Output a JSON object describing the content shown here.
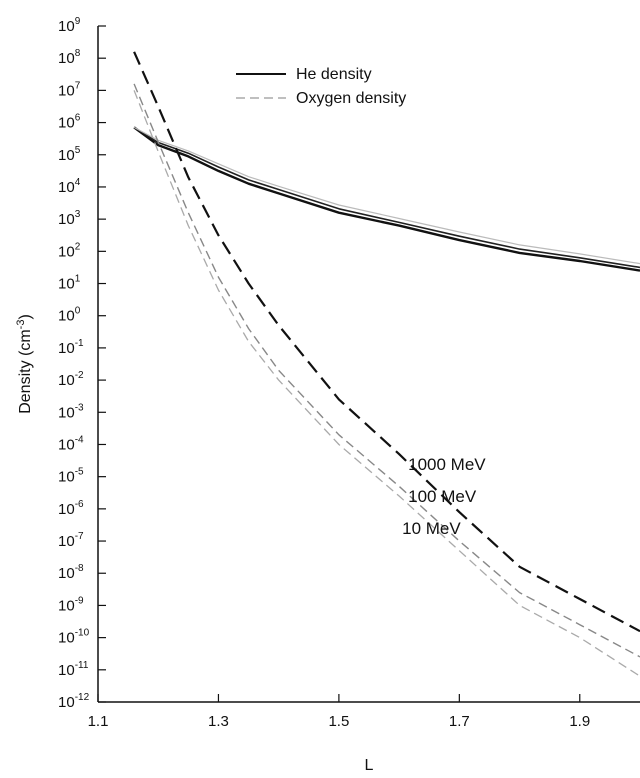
{
  "chart_data": {
    "type": "line",
    "xlabel": "L",
    "ylabel": "Density (cm",
    "ylabel_sup": "-3",
    "ylabel_close": ")",
    "xlim": [
      1.1,
      2.0
    ],
    "ylim_log10": [
      -12,
      9
    ],
    "y_scale": "log",
    "grid": false,
    "legend_position": "top-center",
    "x_ticks": [
      {
        "value": 1.1,
        "label": "1.1"
      },
      {
        "value": 1.3,
        "label": "1.3"
      },
      {
        "value": 1.5,
        "label": "1.5"
      },
      {
        "value": 1.7,
        "label": "1.7"
      },
      {
        "value": 1.9,
        "label": "1.9"
      }
    ],
    "y_ticks": [
      {
        "exp": 9,
        "base": "10",
        "sup": "9"
      },
      {
        "exp": 8,
        "base": "10",
        "sup": "8"
      },
      {
        "exp": 7,
        "base": "10",
        "sup": "7"
      },
      {
        "exp": 6,
        "base": "10",
        "sup": "6"
      },
      {
        "exp": 5,
        "base": "10",
        "sup": "5"
      },
      {
        "exp": 4,
        "base": "10",
        "sup": "4"
      },
      {
        "exp": 3,
        "base": "10",
        "sup": "3"
      },
      {
        "exp": 2,
        "base": "10",
        "sup": "2"
      },
      {
        "exp": 1,
        "base": "10",
        "sup": "1"
      },
      {
        "exp": 0,
        "base": "10",
        "sup": "0"
      },
      {
        "exp": -1,
        "base": "10",
        "sup": "-1"
      },
      {
        "exp": -2,
        "base": "10",
        "sup": "-2"
      },
      {
        "exp": -3,
        "base": "10",
        "sup": "-3"
      },
      {
        "exp": -4,
        "base": "10",
        "sup": "-4"
      },
      {
        "exp": -5,
        "base": "10",
        "sup": "-5"
      },
      {
        "exp": -6,
        "base": "10",
        "sup": "-6"
      },
      {
        "exp": -7,
        "base": "10",
        "sup": "-7"
      },
      {
        "exp": -8,
        "base": "10",
        "sup": "-8"
      },
      {
        "exp": -9,
        "base": "10",
        "sup": "-9"
      },
      {
        "exp": -10,
        "base": "10",
        "sup": "-10"
      },
      {
        "exp": -11,
        "base": "10",
        "sup": "-11"
      },
      {
        "exp": -12,
        "base": "10",
        "sup": "-12"
      }
    ],
    "legend": [
      {
        "label": "He density",
        "style": "solid",
        "color": "#111111"
      },
      {
        "label": "Oxygen density",
        "style": "dashed",
        "color": "#999999"
      }
    ],
    "series": [
      {
        "name": "He density",
        "energy": "1000 MeV",
        "style": "solid",
        "color": "#111111",
        "width": 2.4,
        "x": [
          1.16,
          1.2,
          1.25,
          1.3,
          1.35,
          1.4,
          1.5,
          1.6,
          1.7,
          1.8,
          1.9,
          2.0
        ],
        "log10_y": [
          5.85,
          5.3,
          4.95,
          4.5,
          4.1,
          3.8,
          3.2,
          2.8,
          2.35,
          1.95,
          1.7,
          1.4
        ]
      },
      {
        "name": "He density",
        "energy": "100 MeV",
        "style": "solid",
        "color": "#222222",
        "width": 1.6,
        "x": [
          1.16,
          1.2,
          1.25,
          1.3,
          1.35,
          1.4,
          1.5,
          1.6,
          1.7,
          1.8,
          1.9,
          2.0
        ],
        "log10_y": [
          5.85,
          5.38,
          5.05,
          4.62,
          4.22,
          3.92,
          3.32,
          2.9,
          2.47,
          2.07,
          1.8,
          1.5
        ]
      },
      {
        "name": "He density",
        "energy": "10 MeV",
        "style": "solid",
        "color": "#bbbbbb",
        "width": 1.2,
        "x": [
          1.16,
          1.2,
          1.25,
          1.3,
          1.35,
          1.4,
          1.5,
          1.6,
          1.7,
          1.8,
          1.9,
          2.0
        ],
        "log10_y": [
          5.85,
          5.45,
          5.12,
          4.72,
          4.32,
          4.02,
          3.44,
          3.02,
          2.6,
          2.2,
          1.92,
          1.62
        ]
      },
      {
        "name": "Oxygen density",
        "energy": "1000 MeV",
        "style": "dashed",
        "color": "#111111",
        "width": 2.2,
        "x": [
          1.16,
          1.2,
          1.25,
          1.3,
          1.35,
          1.4,
          1.5,
          1.6,
          1.7,
          1.8,
          1.9,
          2.0
        ],
        "log10_y": [
          8.2,
          6.5,
          4.3,
          2.5,
          1.0,
          -0.3,
          -2.6,
          -4.3,
          -6.1,
          -7.8,
          -8.8,
          -9.8
        ]
      },
      {
        "name": "Oxygen density",
        "energy": "100 MeV",
        "style": "dashed",
        "color": "#888888",
        "width": 1.4,
        "x": [
          1.16,
          1.2,
          1.25,
          1.3,
          1.35,
          1.4,
          1.5,
          1.6,
          1.7,
          1.8,
          1.9,
          2.0
        ],
        "log10_y": [
          7.2,
          5.4,
          3.2,
          1.2,
          -0.4,
          -1.7,
          -3.7,
          -5.3,
          -7.0,
          -8.6,
          -9.6,
          -10.6
        ]
      },
      {
        "name": "Oxygen density",
        "energy": "10 MeV",
        "style": "dashed",
        "color": "#aaaaaa",
        "width": 1.3,
        "x": [
          1.16,
          1.2,
          1.25,
          1.3,
          1.35,
          1.4,
          1.5,
          1.6,
          1.7,
          1.8,
          1.9,
          2.0
        ],
        "log10_y": [
          7.0,
          5.1,
          2.8,
          0.8,
          -0.8,
          -2.0,
          -4.0,
          -5.6,
          -7.3,
          -9.0,
          -10.0,
          -11.2
        ]
      }
    ],
    "annotations": [
      {
        "text": "1000 MeV",
        "x": 1.615,
        "log10_y": -4.6
      },
      {
        "text": "100 MeV",
        "x": 1.615,
        "log10_y": -5.6
      },
      {
        "text": "10 MeV",
        "x": 1.605,
        "log10_y": -6.6
      }
    ]
  }
}
